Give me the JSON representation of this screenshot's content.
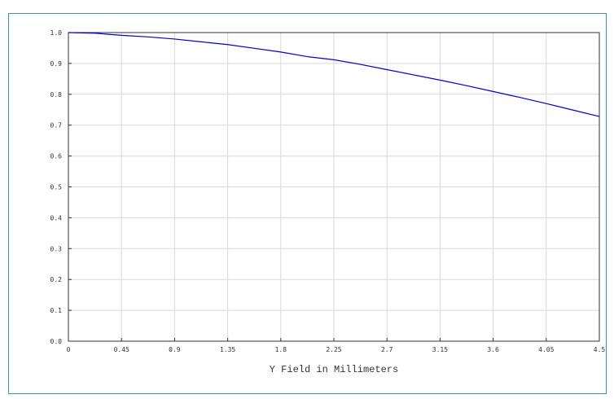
{
  "chart_data": {
    "type": "line",
    "title": "",
    "xlabel": "Y Field in Millimeters",
    "ylabel": "",
    "xlim": [
      0,
      4.5
    ],
    "ylim": [
      0,
      1.0
    ],
    "grid": true,
    "x_ticks": [
      "0",
      "0.45",
      "0.9",
      "1.35",
      "1.8",
      "2.25",
      "2.7",
      "3.15",
      "3.6",
      "4.05",
      "4.5"
    ],
    "y_ticks": [
      "0.0",
      "0.1",
      "0.2",
      "0.3",
      "0.4",
      "0.5",
      "0.6",
      "0.7",
      "0.8",
      "0.9",
      "1.0"
    ],
    "series": [
      {
        "color": "#0000cc",
        "x": [
          0,
          0.225,
          0.45,
          0.675,
          0.9,
          1.125,
          1.35,
          1.575,
          1.8,
          2.025,
          2.25,
          2.475,
          2.7,
          2.925,
          3.15,
          3.375,
          3.6,
          3.825,
          4.05,
          4.275,
          4.5
        ],
        "y": [
          1.0,
          0.998,
          0.991,
          0.986,
          0.979,
          0.97,
          0.961,
          0.949,
          0.937,
          0.922,
          0.912,
          0.897,
          0.88,
          0.863,
          0.846,
          0.828,
          0.809,
          0.79,
          0.77,
          0.749,
          0.728
        ]
      }
    ]
  }
}
